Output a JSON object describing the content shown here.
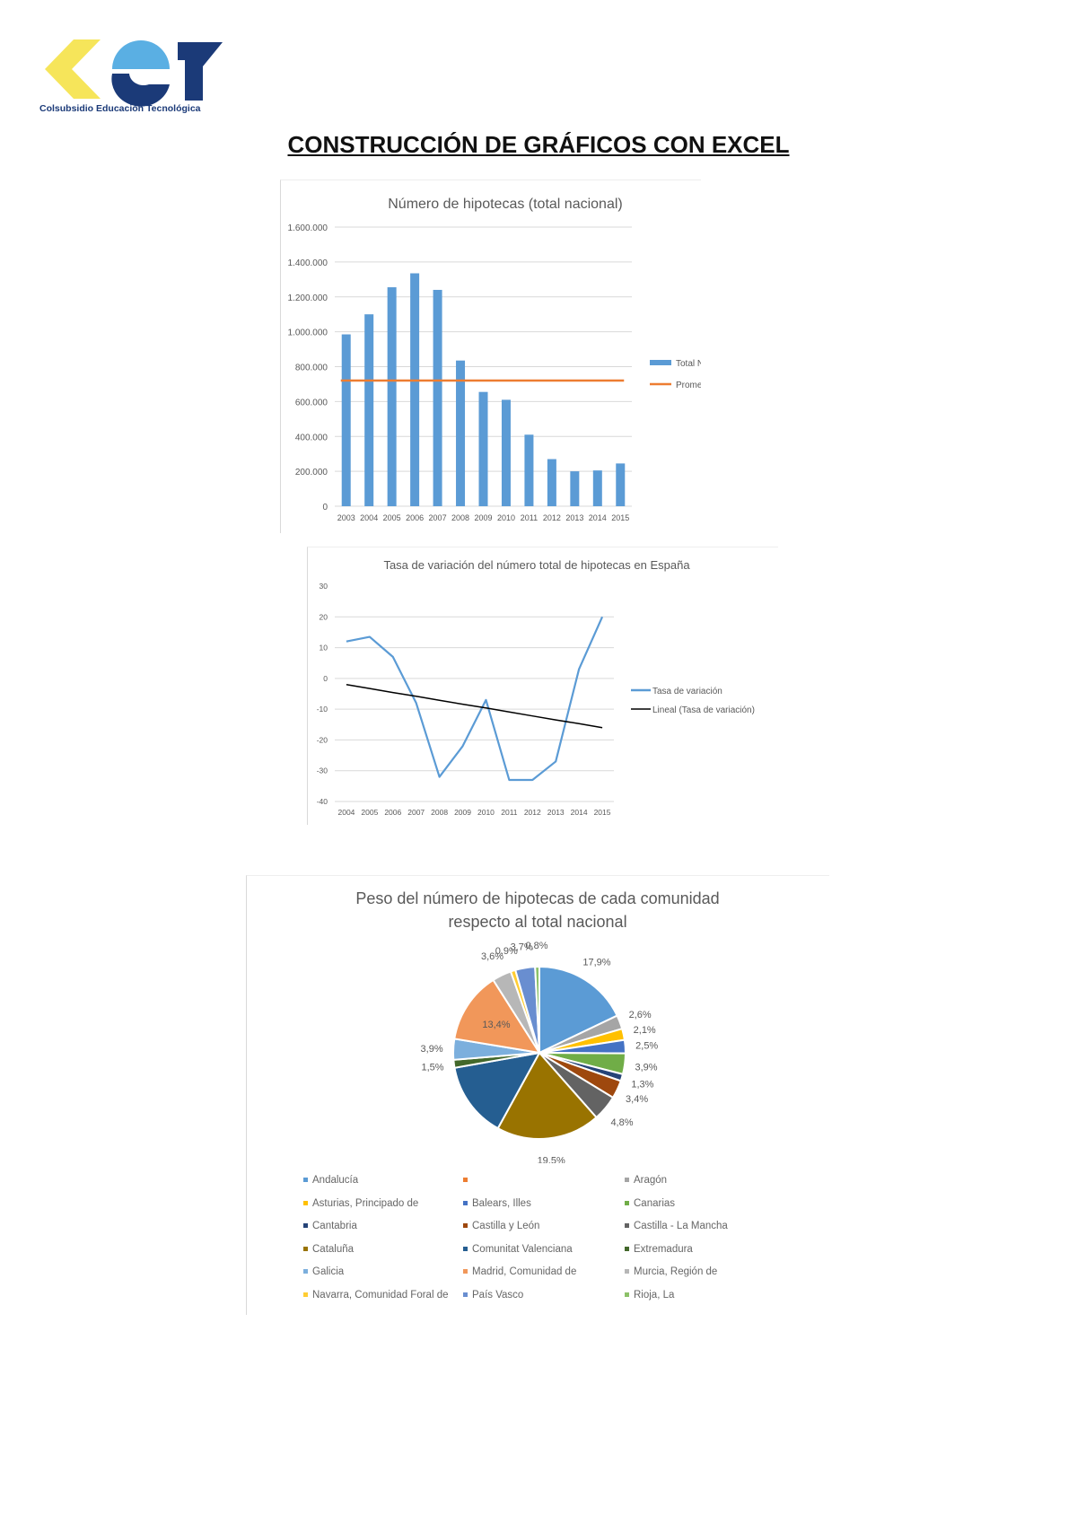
{
  "logo": {
    "caption": "Colsubsidio Educación Tecnológica",
    "colors": {
      "yellow": "#F6E55A",
      "light_blue": "#5AAFE3",
      "navy": "#1B3A78"
    }
  },
  "heading": "CONSTRUCCIÓN DE GRÁFICOS CON EXCEL",
  "chart_data": [
    {
      "type": "bar",
      "title": "Número de hipotecas (total nacional)",
      "categories": [
        "2003",
        "2004",
        "2005",
        "2006",
        "2007",
        "2008",
        "2009",
        "2010",
        "2011",
        "2012",
        "2013",
        "2014",
        "2015"
      ],
      "series": [
        {
          "name": "Total Nacional",
          "type": "bar",
          "color": "#5B9BD5",
          "values": [
            985000,
            1100000,
            1255000,
            1335000,
            1240000,
            835000,
            655000,
            610000,
            410000,
            270000,
            200000,
            205000,
            245000
          ]
        },
        {
          "name": "Promedio",
          "type": "line",
          "color": "#ED7D31",
          "values": [
            720000,
            720000,
            720000,
            720000,
            720000,
            720000,
            720000,
            720000,
            720000,
            720000,
            720000,
            720000,
            720000
          ]
        }
      ],
      "yticks": [
        "0",
        "200.000",
        "400.000",
        "600.000",
        "800.000",
        "1.000.000",
        "1.200.000",
        "1.400.000",
        "1.600.000"
      ],
      "ylim": [
        0,
        1600000
      ],
      "grid": true,
      "legend": "right"
    },
    {
      "type": "line",
      "title": "Tasa de variación del número total de hipotecas en España",
      "categories": [
        "2004",
        "2005",
        "2006",
        "2007",
        "2008",
        "2009",
        "2010",
        "2011",
        "2012",
        "2013",
        "2014",
        "2015"
      ],
      "series": [
        {
          "name": "Tasa de variación",
          "color": "#5B9BD5",
          "values": [
            12,
            13.5,
            7,
            -8,
            -32,
            -22,
            -7,
            -33,
            -33,
            -27,
            3,
            20
          ]
        },
        {
          "name": "Lineal (Tasa de variación)",
          "color": "#000000",
          "values": [
            -2,
            -3.3,
            -4.6,
            -5.8,
            -7.1,
            -8.4,
            -9.6,
            -10.9,
            -12.2,
            -13.5,
            -14.7,
            -16
          ]
        }
      ],
      "yticks": [
        "-40",
        "-30",
        "-20",
        "-10",
        "0",
        "10",
        "20",
        "30"
      ],
      "ylim": [
        -40,
        30
      ],
      "grid": true,
      "legend": "right"
    },
    {
      "type": "pie",
      "title": [
        "Peso del número de hipotecas de cada comunidad",
        "respecto al total nacional"
      ],
      "slices": [
        {
          "name": "Andalucía",
          "value": 17.9,
          "label": "17,9%",
          "color": "#5B9BD5"
        },
        {
          "name": "",
          "value": 0,
          "label": "",
          "color": "#ED7D31"
        },
        {
          "name": "Aragón",
          "value": 2.6,
          "label": "2,6%",
          "color": "#A5A5A5"
        },
        {
          "name": "Asturias, Principado de",
          "value": 2.1,
          "label": "2,1%",
          "color": "#FFC000"
        },
        {
          "name": "Balears, Illes",
          "value": 2.5,
          "label": "2,5%",
          "color": "#4472C4"
        },
        {
          "name": "Canarias",
          "value": 3.9,
          "label": "3,9%",
          "color": "#70AD47"
        },
        {
          "name": "Cantabria",
          "value": 1.3,
          "label": "1,3%",
          "color": "#264478"
        },
        {
          "name": "Castilla y León",
          "value": 3.4,
          "label": "3,4%",
          "color": "#9E480E"
        },
        {
          "name": "Castilla - La Mancha",
          "value": 4.8,
          "label": "4,8%",
          "color": "#636363"
        },
        {
          "name": "Cataluña",
          "value": 19.5,
          "label": "19,5%",
          "color": "#997300"
        },
        {
          "name": "Comunitat Valenciana",
          "value": 14.2,
          "label": "",
          "color": "#255E91"
        },
        {
          "name": "Extremadura",
          "value": 1.5,
          "label": "1,5%",
          "color": "#43682B"
        },
        {
          "name": "Galicia",
          "value": 3.9,
          "label": "3,9%",
          "color": "#7CAFDD"
        },
        {
          "name": "Madrid, Comunidad de",
          "value": 13.4,
          "label": "13,4%",
          "color": "#F1975A"
        },
        {
          "name": "Murcia, Región de",
          "value": 3.6,
          "label": "3,6%",
          "color": "#B7B7B7"
        },
        {
          "name": "Navarra, Comunidad Foral de",
          "value": 0.9,
          "label": "0,9%",
          "color": "#FFCD33"
        },
        {
          "name": "País Vasco",
          "value": 3.7,
          "label": "3,7%",
          "color": "#698ED0"
        },
        {
          "name": "Rioja, La",
          "value": 0.8,
          "label": "0,8%",
          "color": "#8CC168"
        }
      ],
      "legend": "bottom"
    }
  ]
}
